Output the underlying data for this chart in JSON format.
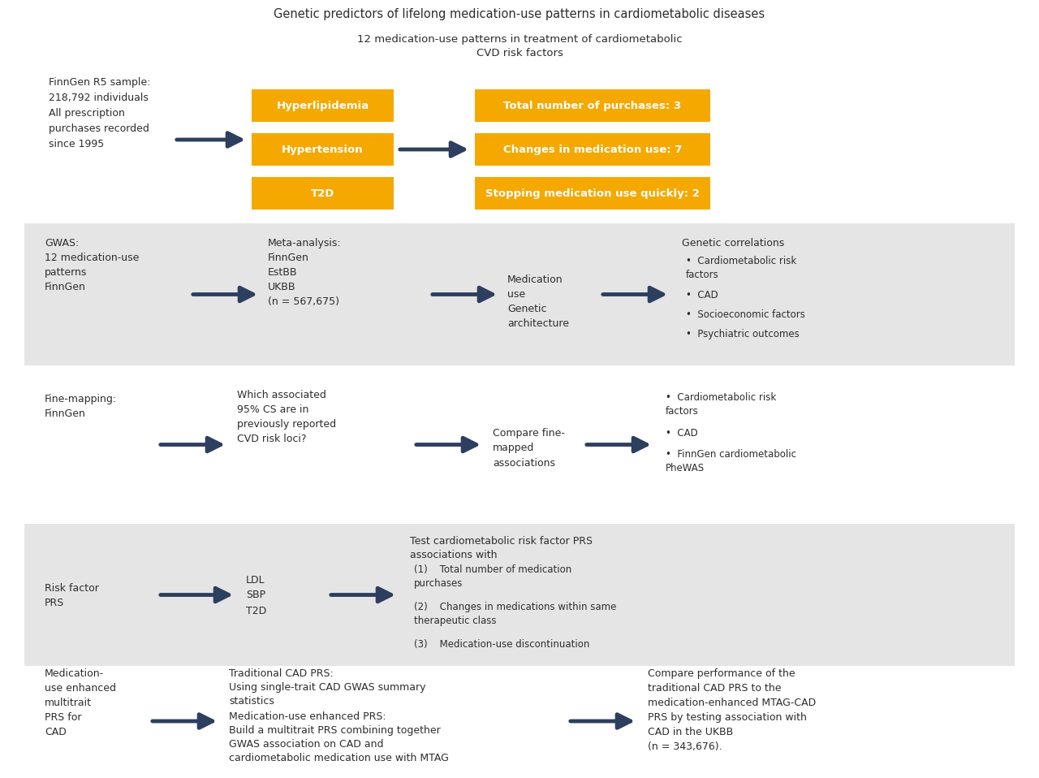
{
  "title": "Genetic predictors of lifelong medication-use patterns in cardiometabolic diseases",
  "title_fontsize": 10.5,
  "background": "#ffffff",
  "arrow_color": "#2d3f5e",
  "orange": "#f5a800",
  "gray_bg": "#e5e5e5",
  "text_color": "#2d2d2d",
  "section1": {
    "subtitle": "12 medication-use patterns in treatment of cardiometabolic\nCVD risk factors",
    "left_text": "FinnGen R5 sample:\n218,792 individuals\nAll prescription\npurchases recorded\nsince 1995",
    "boxes_left": [
      "Hyperlipidemia",
      "Hypertension",
      "T2D"
    ],
    "boxes_right": [
      "Total number of purchases: 3",
      "Changes in medication use: 7",
      "Stopping medication use quickly: 2"
    ]
  },
  "section2": {
    "col1": "GWAS:\n12 medication-use\npatterns\nFinnGen",
    "col2": "Meta-analysis:\nFinnGen\nEstBB\nUKBB\n(n = 567,675)",
    "col3": "Medication\nuse\nGenetic\narchitecture",
    "col4_title": "Genetic correlations",
    "col4_bullets": [
      "Cardiometabolic risk\nfactors",
      "CAD",
      "Socioeconomic factors",
      "Psychiatric outcomes"
    ]
  },
  "section3": {
    "col1": "Fine-mapping:\nFinnGen",
    "col2": "Which associated\n95% CS are in\npreviously reported\nCVD risk loci?",
    "col3": "Compare fine-\nmapped\nassociations",
    "col4_bullets": [
      "Cardiometabolic risk\nfactors",
      "CAD",
      "FinnGen cardiometabolic\nPheWAS"
    ]
  },
  "section4": {
    "col1": "Risk factor\nPRS",
    "col2": "LDL\nSBP\nT2D",
    "col3_title": "Test cardiometabolic risk factor PRS\nassociations with",
    "col3_bullets": [
      "Total number of medication\npurchases",
      "Changes in medications within same\ntherapeutic class",
      "Medication-use discontinuation"
    ]
  },
  "section5": {
    "col1": "Medication-\nuse enhanced\nmultitrait\nPRS for\nCAD",
    "col2a": "Traditional CAD PRS:",
    "col2b": "Using single-trait CAD GWAS summary\nstatistics",
    "col2c": "Medication-use enhanced PRS:",
    "col2d": "Build a multitrait PRS combining together\nGWAS association on CAD and\ncardiometabolic medication use with MTAG",
    "col3": "Compare performance of the\ntraditional CAD PRS to the\nmedication-enhanced MTAG-CAD\nPRS by testing association with\nCAD in the UKBB\n(n = 343,676)."
  }
}
